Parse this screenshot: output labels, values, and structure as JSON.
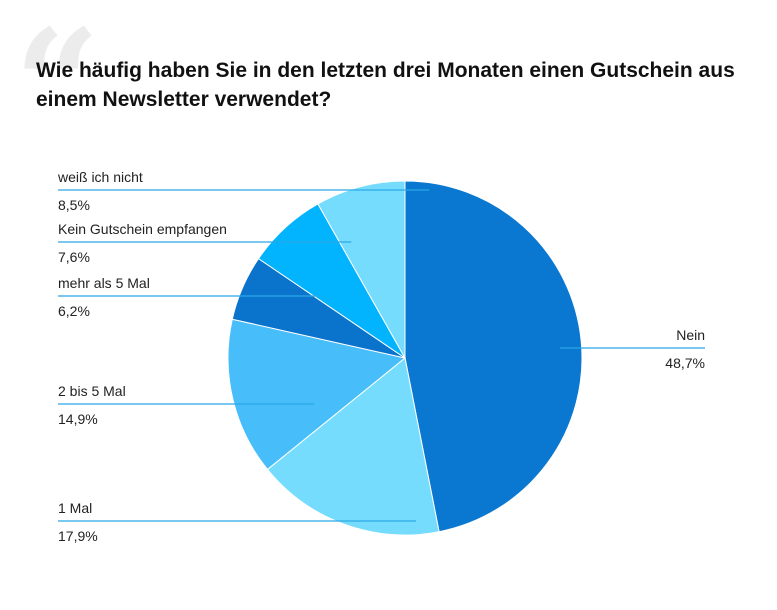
{
  "title": "Wie häufig haben Sie in den letzten drei Monaten einen Gutschein aus einem Newsletter verwendet?",
  "decoration": {
    "quote_icon": "quote-icon"
  },
  "chart_data": {
    "type": "pie",
    "title": "Wie häufig haben Sie in den letzten drei Monaten einen Gutschein aus einem Newsletter verwendet?",
    "start": "12 o'clock, clockwise",
    "slices": [
      {
        "label": "Nein",
        "value": 48.7,
        "display": "48,7%",
        "color": "#0a78d0",
        "label_side": "right"
      },
      {
        "label": "1 Mal",
        "value": 17.9,
        "display": "17,9%",
        "color": "#75dcfe",
        "label_side": "left"
      },
      {
        "label": "2 bis 5 Mal",
        "value": 14.9,
        "display": "14,9%",
        "color": "#47bdfa",
        "label_side": "left"
      },
      {
        "label": "mehr als 5 Mal",
        "value": 6.2,
        "display": "6,2%",
        "color": "#0a73cc",
        "label_side": "left"
      },
      {
        "label": "Kein Gutschein empfangen",
        "value": 7.6,
        "display": "7,6%",
        "color": "#02b3fd",
        "label_side": "left"
      },
      {
        "label": "weiß ich nicht",
        "value": 8.5,
        "display": "8,5%",
        "color": "#75dcfe",
        "label_side": "left"
      }
    ]
  }
}
